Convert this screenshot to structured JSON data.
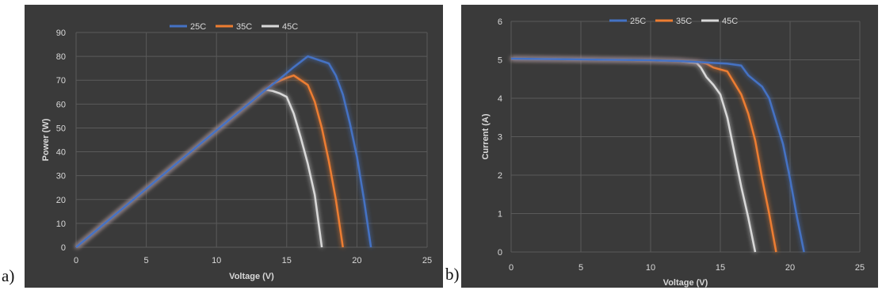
{
  "panels": [
    {
      "letter": "a)"
    },
    {
      "letter": "b)"
    }
  ],
  "chart_data": [
    {
      "type": "line",
      "title": "",
      "xlabel": "Voltage (V)",
      "ylabel": "Power (W)",
      "xlim": [
        0,
        25
      ],
      "ylim": [
        0,
        90
      ],
      "xticks": [
        0,
        5,
        10,
        15,
        20,
        25
      ],
      "yticks": [
        0,
        10,
        20,
        30,
        40,
        50,
        60,
        70,
        80,
        90
      ],
      "grid": true,
      "legend": "top-center",
      "colors": {
        "background": "#3a3a3a",
        "grid": "#5a5a5a",
        "text": "#d9d9d9"
      },
      "series": [
        {
          "name": "25C",
          "color": "#4472c4",
          "x": [
            0,
            5,
            10,
            13.5,
            14.5,
            15.5,
            16.5,
            17.5,
            18,
            18.5,
            19,
            19.5,
            20,
            20.5,
            21
          ],
          "y": [
            0,
            24.5,
            49,
            66,
            70.5,
            75.5,
            80,
            78,
            77,
            72,
            64,
            52,
            38,
            20,
            0
          ]
        },
        {
          "name": "35C",
          "color": "#ed7d31",
          "x": [
            0,
            5,
            10,
            13.5,
            14,
            15,
            15.5,
            16.5,
            17,
            17.5,
            18,
            18.5,
            19
          ],
          "y": [
            0,
            24.5,
            49,
            66,
            68.5,
            71,
            72,
            68,
            61,
            50,
            36,
            20,
            0
          ]
        },
        {
          "name": "45C",
          "color": "#d9d9d9",
          "x": [
            0,
            5,
            10,
            13.5,
            14,
            14.5,
            15,
            15.5,
            16,
            16.5,
            17,
            17.5
          ],
          "y": [
            0,
            24.5,
            49,
            66,
            65.5,
            64.5,
            63,
            56,
            46,
            35,
            22,
            0
          ]
        }
      ]
    },
    {
      "type": "line",
      "title": "",
      "xlabel": "Voltage (V)",
      "ylabel": "Current (A)",
      "xlim": [
        0,
        25
      ],
      "ylim": [
        0,
        6
      ],
      "xticks": [
        0,
        5,
        10,
        15,
        20,
        25
      ],
      "yticks": [
        0,
        1,
        2,
        3,
        4,
        5,
        6
      ],
      "grid": true,
      "legend": "top-center",
      "colors": {
        "background": "#3a3a3a",
        "grid": "#5a5a5a",
        "text": "#d9d9d9"
      },
      "series": [
        {
          "name": "25C",
          "color": "#4472c4",
          "x": [
            0,
            5,
            10,
            12,
            13.5,
            14.5,
            15.5,
            16.5,
            17,
            17.5,
            18,
            18.5,
            19,
            19.5,
            20,
            20.5,
            21
          ],
          "y": [
            5.03,
            5.01,
            4.99,
            4.97,
            4.94,
            4.92,
            4.9,
            4.85,
            4.6,
            4.45,
            4.3,
            4.0,
            3.4,
            2.8,
            1.9,
            0.9,
            0
          ]
        },
        {
          "name": "35C",
          "color": "#ed7d31",
          "x": [
            0,
            5,
            10,
            12,
            13.5,
            14,
            14.5,
            15.5,
            16,
            16.5,
            17,
            17.5,
            18,
            18.5,
            19
          ],
          "y": [
            5.03,
            5.01,
            4.99,
            4.97,
            4.94,
            4.9,
            4.8,
            4.7,
            4.4,
            4.1,
            3.6,
            2.9,
            1.9,
            1.0,
            0
          ]
        },
        {
          "name": "45C",
          "color": "#d9d9d9",
          "x": [
            0,
            5,
            10,
            12,
            13.3,
            13.6,
            14,
            14.5,
            15,
            15.5,
            16,
            16.5,
            17,
            17.5
          ],
          "y": [
            5.03,
            5.01,
            4.99,
            4.97,
            4.92,
            4.8,
            4.55,
            4.35,
            4.1,
            3.5,
            2.6,
            1.7,
            0.9,
            0
          ]
        }
      ]
    }
  ]
}
